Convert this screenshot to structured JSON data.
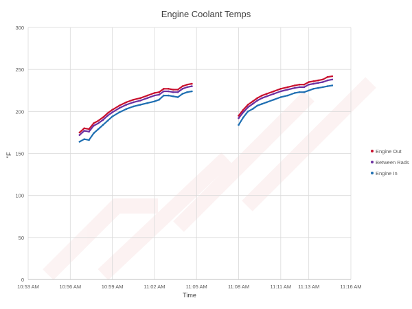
{
  "chart_data": {
    "type": "line",
    "title": "Engine Coolant Temps",
    "xlabel": "Time",
    "ylabel": "°F",
    "x_ticks": [
      "10:53 AM",
      "10:56 AM",
      "10:59 AM",
      "11:02 AM",
      "11:05 AM",
      "11:08 AM",
      "11:11 AM",
      "11:13 AM",
      "11:16 AM"
    ],
    "y_ticks": [
      0,
      50,
      100,
      150,
      200,
      250,
      300
    ],
    "ylim": [
      0,
      300
    ],
    "xlim": [
      "10:53 AM",
      "11:16 AM"
    ],
    "grid": true,
    "legend_position": "right",
    "series": [
      {
        "name": "Engine Out",
        "color": "#c8102e",
        "segments": [
          {
            "x": [
              "10:56:40",
              "10:57:00",
              "10:57:20",
              "10:57:40",
              "10:58:00",
              "10:58:20",
              "10:58:40",
              "10:59:00",
              "10:59:30",
              "11:00:00",
              "11:00:30",
              "11:01:00",
              "11:01:30",
              "11:02:00",
              "11:02:20",
              "11:02:40",
              "11:03:00",
              "11:03:20",
              "11:03:40",
              "11:04:00",
              "11:04:20",
              "11:04:40"
            ],
            "y": [
              175,
              180,
              179,
              186,
              189,
              193,
              198,
              202,
              207,
              211,
              214,
              216,
              219,
              222,
              223,
              227,
              227,
              226,
              226,
              230,
              232,
              233
            ]
          },
          {
            "x": [
              "11:08:00",
              "11:08:20",
              "11:08:40",
              "11:09:00",
              "11:09:20",
              "11:09:40",
              "11:10:00",
              "11:10:30",
              "11:11:00",
              "11:11:30",
              "11:12:00",
              "11:12:20",
              "11:12:40",
              "11:13:00",
              "11:13:20",
              "11:13:40",
              "11:14:00",
              "11:14:20",
              "11:14:40"
            ],
            "y": [
              195,
              202,
              208,
              212,
              216,
              219,
              221,
              224,
              227,
              229,
              231,
              232,
              232,
              235,
              236,
              237,
              238,
              241,
              242
            ]
          }
        ]
      },
      {
        "name": "Between Rads",
        "color": "#6b2fa0",
        "segments": [
          {
            "x": [
              "10:56:40",
              "10:57:00",
              "10:57:20",
              "10:57:40",
              "10:58:00",
              "10:58:20",
              "10:58:40",
              "10:59:00",
              "10:59:30",
              "11:00:00",
              "11:00:30",
              "11:01:00",
              "11:01:30",
              "11:02:00",
              "11:02:20",
              "11:02:40",
              "11:03:00",
              "11:03:20",
              "11:03:40",
              "11:04:00",
              "11:04:20",
              "11:04:40"
            ],
            "y": [
              172,
              177,
              176,
              183,
              186,
              190,
              195,
              199,
              204,
              208,
              211,
              213,
              216,
              219,
              220,
              224,
              224,
              223,
              223,
              227,
              229,
              230
            ]
          },
          {
            "x": [
              "11:08:00",
              "11:08:20",
              "11:08:40",
              "11:09:00",
              "11:09:20",
              "11:09:40",
              "11:10:00",
              "11:10:30",
              "11:11:00",
              "11:11:30",
              "11:12:00",
              "11:12:20",
              "11:12:40",
              "11:13:00",
              "11:13:20",
              "11:13:40",
              "11:14:00",
              "11:14:20",
              "11:14:40"
            ],
            "y": [
              192,
              199,
              205,
              209,
              213,
              216,
              218,
              221,
              224,
              226,
              228,
              229,
              229,
              232,
              233,
              234,
              235,
              237,
              238
            ]
          }
        ]
      },
      {
        "name": "Engine In",
        "color": "#1f6fb2",
        "segments": [
          {
            "x": [
              "10:56:40",
              "10:57:00",
              "10:57:20",
              "10:57:40",
              "10:58:00",
              "10:58:20",
              "10:58:40",
              "10:59:00",
              "10:59:30",
              "11:00:00",
              "11:00:30",
              "11:01:00",
              "11:01:30",
              "11:02:00",
              "11:02:20",
              "11:02:40",
              "11:03:00",
              "11:03:20",
              "11:03:40",
              "11:04:00",
              "11:04:20",
              "11:04:40"
            ],
            "y": [
              164,
              167,
              166,
              174,
              179,
              184,
              189,
              194,
              199,
              203,
              206,
              208,
              210,
              212,
              214,
              219,
              219,
              218,
              217,
              221,
              223,
              224
            ]
          },
          {
            "x": [
              "11:08:00",
              "11:08:20",
              "11:08:40",
              "11:09:00",
              "11:09:20",
              "11:09:40",
              "11:10:00",
              "11:10:30",
              "11:11:00",
              "11:11:30",
              "11:12:00",
              "11:12:20",
              "11:12:40",
              "11:13:00",
              "11:13:20",
              "11:13:40",
              "11:14:00",
              "11:14:20",
              "11:14:40"
            ],
            "y": [
              184,
              193,
              200,
              203,
              207,
              209,
              211,
              214,
              217,
              219,
              222,
              223,
              223,
              225,
              227,
              228,
              229,
              230,
              231
            ]
          }
        ]
      }
    ]
  }
}
